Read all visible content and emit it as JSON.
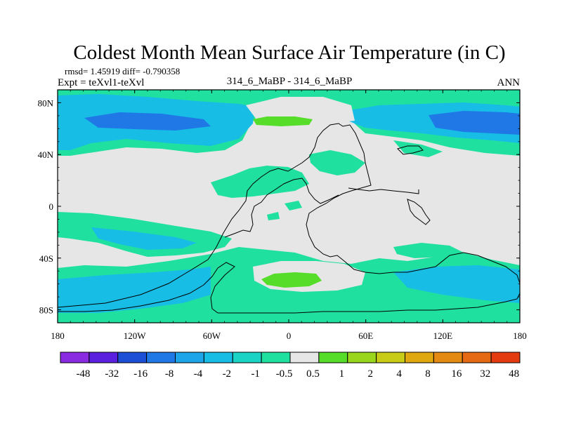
{
  "chart_data": {
    "type": "heatmap",
    "title": "Coldest Month Mean Surface Air Temperature (in C)",
    "stats": "rmsd= 1.45919 diff= -0.790358",
    "experiment": "Expt = teXvl1-teXvl",
    "center_label": "314_6_MaBP - 314_6_MaBP",
    "season": "ANN",
    "x_ticks": [
      "180",
      "120W",
      "60W",
      "0",
      "60E",
      "120E",
      "180"
    ],
    "y_ticks": [
      "80N",
      "40N",
      "0",
      "40S",
      "80S"
    ],
    "xlim": [
      -180,
      180
    ],
    "ylim": [
      -90,
      90
    ],
    "colorbar": {
      "colors": [
        "#8a2be2",
        "#5b1fe0",
        "#1c4fd6",
        "#1f78e6",
        "#1ea4e8",
        "#17bde5",
        "#1ad3c5",
        "#20e0a0",
        "#e6e6e6",
        "#55dd2a",
        "#99d61c",
        "#c8cc16",
        "#e0a810",
        "#e48a12",
        "#e66a14",
        "#e43c10"
      ],
      "labels": [
        "-48",
        "-32",
        "-16",
        "-8",
        "-4",
        "-2",
        "-1",
        "-0.5",
        "0.5",
        "1",
        "2",
        "4",
        "8",
        "16",
        "32",
        "48"
      ]
    },
    "field_colors": {
      "background": "#e6e6e6",
      "light": "#20e0a0",
      "mid": "#17bde5",
      "cold": "#1f78e6",
      "warm": "#55dd2a"
    }
  }
}
